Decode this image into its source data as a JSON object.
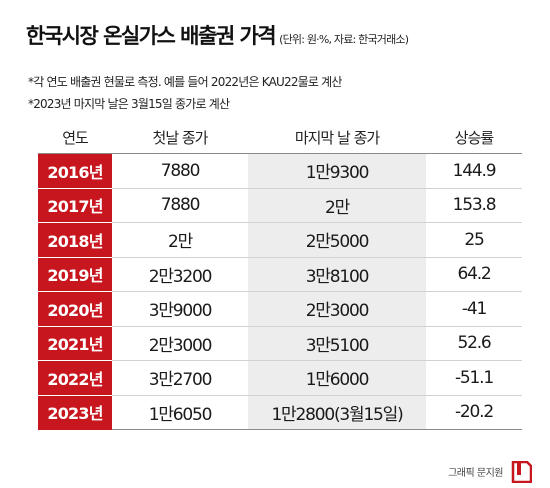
{
  "header": {
    "title": "한국시장 온실가스 배출권 가격",
    "unit_note": "(단위: 원·%, 자료: 한국거래소)",
    "note1": "*각 연도 배출권 현물로 측정. 예를 들어 2022년은 KAU22물로 계산",
    "note2": "*2023년 마지막 날은 3월15일 종가로 계산"
  },
  "table": {
    "columns": [
      "연도",
      "첫날 종가",
      "마지막 날 종가",
      "상승률"
    ],
    "rows": [
      {
        "year": "2016년",
        "first": "7880",
        "last": "1만9300",
        "rate": "144.9"
      },
      {
        "year": "2017년",
        "first": "7880",
        "last": "2만",
        "rate": "153.8"
      },
      {
        "year": "2018년",
        "first": "2만",
        "last": "2만5000",
        "rate": "25"
      },
      {
        "year": "2019년",
        "first": "2만3200",
        "last": "3만8100",
        "rate": "64.2"
      },
      {
        "year": "2020년",
        "first": "3만9000",
        "last": "2만3000",
        "rate": "-41"
      },
      {
        "year": "2021년",
        "first": "2만3000",
        "last": "3만5100",
        "rate": "52.6"
      },
      {
        "year": "2022년",
        "first": "3만2700",
        "last": "1만6000",
        "rate": "-51.1"
      },
      {
        "year": "2023년",
        "first": "1만6050",
        "last": "1만2800(3월15일)",
        "rate": "-20.2"
      }
    ]
  },
  "footer": {
    "credit": "그래픽 문지원",
    "logo_icon": "newspaper-logo-icon"
  },
  "colors": {
    "year_cell": "#c8161e",
    "last_column_shade": "#ededed"
  }
}
